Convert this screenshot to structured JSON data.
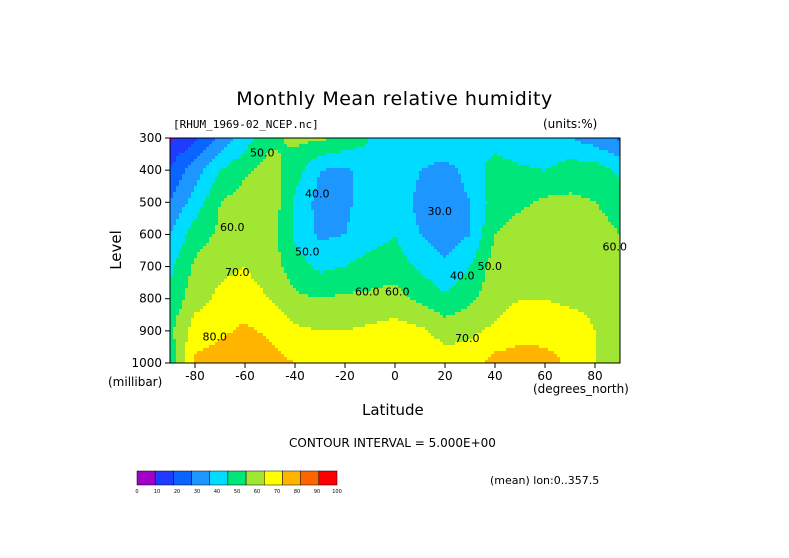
{
  "chart_data": {
    "type": "heatmap",
    "title": "Monthly Mean relative humidity",
    "file_label": "[RHUM_1969-02_NCEP.nc]",
    "units_label": "(units:%)",
    "xlabel": "Latitude",
    "ylabel": "Level",
    "x_unit": "(degrees_north)",
    "y_unit": "(millibar)",
    "xlim": [
      -90,
      90
    ],
    "ylim": [
      1000,
      300
    ],
    "x_ticks": [
      -80,
      -60,
      -40,
      -20,
      0,
      20,
      40,
      60,
      80
    ],
    "y_ticks": [
      300,
      400,
      500,
      600,
      700,
      800,
      900,
      1000
    ],
    "contour_interval_text": "CONTOUR INTERVAL = 5.000E+00",
    "mean_note": "(mean) lon:0..357.5",
    "lat": [
      -90,
      -80,
      -70,
      -60,
      -50,
      -40,
      -30,
      -20,
      -10,
      0,
      10,
      20,
      30,
      40,
      50,
      60,
      70,
      80,
      90
    ],
    "levels": [
      300,
      400,
      500,
      600,
      700,
      800,
      900,
      1000
    ],
    "values": [
      [
        8,
        18,
        32,
        45,
        58,
        62,
        62,
        58,
        50,
        45,
        48,
        50,
        48,
        45,
        42,
        40,
        40,
        35,
        28
      ],
      [
        22,
        35,
        50,
        58,
        64,
        55,
        40,
        38,
        45,
        50,
        40,
        36,
        44,
        55,
        52,
        50,
        55,
        55,
        48
      ],
      [
        30,
        45,
        60,
        65,
        68,
        48,
        36,
        38,
        45,
        50,
        36,
        32,
        40,
        55,
        58,
        62,
        62,
        60,
        55
      ],
      [
        40,
        55,
        62,
        68,
        65,
        48,
        38,
        40,
        45,
        50,
        40,
        34,
        40,
        60,
        65,
        65,
        65,
        65,
        60
      ],
      [
        48,
        62,
        68,
        70,
        65,
        55,
        48,
        50,
        55,
        55,
        48,
        42,
        50,
        65,
        68,
        68,
        66,
        62,
        62
      ],
      [
        52,
        66,
        72,
        74,
        70,
        62,
        60,
        62,
        62,
        64,
        58,
        52,
        58,
        66,
        70,
        70,
        68,
        68,
        64
      ],
      [
        58,
        75,
        78,
        82,
        78,
        72,
        70,
        70,
        72,
        74,
        72,
        66,
        68,
        72,
        76,
        76,
        75,
        70,
        66
      ],
      [
        52,
        82,
        85,
        88,
        84,
        80,
        76,
        78,
        80,
        78,
        78,
        75,
        75,
        84,
        85,
        84,
        78,
        70,
        68
      ]
    ],
    "contour_labels": [
      {
        "text": "50.0",
        "lat": -58,
        "level": 358
      },
      {
        "text": "40.0",
        "lat": -36,
        "level": 485
      },
      {
        "text": "60.0",
        "lat": -70,
        "level": 590
      },
      {
        "text": "70.0",
        "lat": -68,
        "level": 730
      },
      {
        "text": "50.0",
        "lat": -40,
        "level": 665
      },
      {
        "text": "60.0",
        "lat": -16,
        "level": 790
      },
      {
        "text": "60.0",
        "lat": -4,
        "level": 790
      },
      {
        "text": "30.0",
        "lat": 13,
        "level": 540
      },
      {
        "text": "40.0",
        "lat": 22,
        "level": 740
      },
      {
        "text": "50.0",
        "lat": 33,
        "level": 710
      },
      {
        "text": "70.0",
        "lat": 24,
        "level": 935
      },
      {
        "text": "60.0",
        "lat": 83,
        "level": 650
      },
      {
        "text": "80.0",
        "lat": -77,
        "level": 930
      }
    ],
    "colorbar": {
      "boundaries": [
        0,
        10,
        20,
        30,
        40,
        50,
        60,
        70,
        80,
        90,
        100
      ],
      "colors": [
        "#a000c8",
        "#1e3cff",
        "#0a64ff",
        "#1e96ff",
        "#00dcff",
        "#00e678",
        "#a0e632",
        "#ffff00",
        "#ffb400",
        "#ff6400",
        "#ff0000"
      ]
    }
  }
}
